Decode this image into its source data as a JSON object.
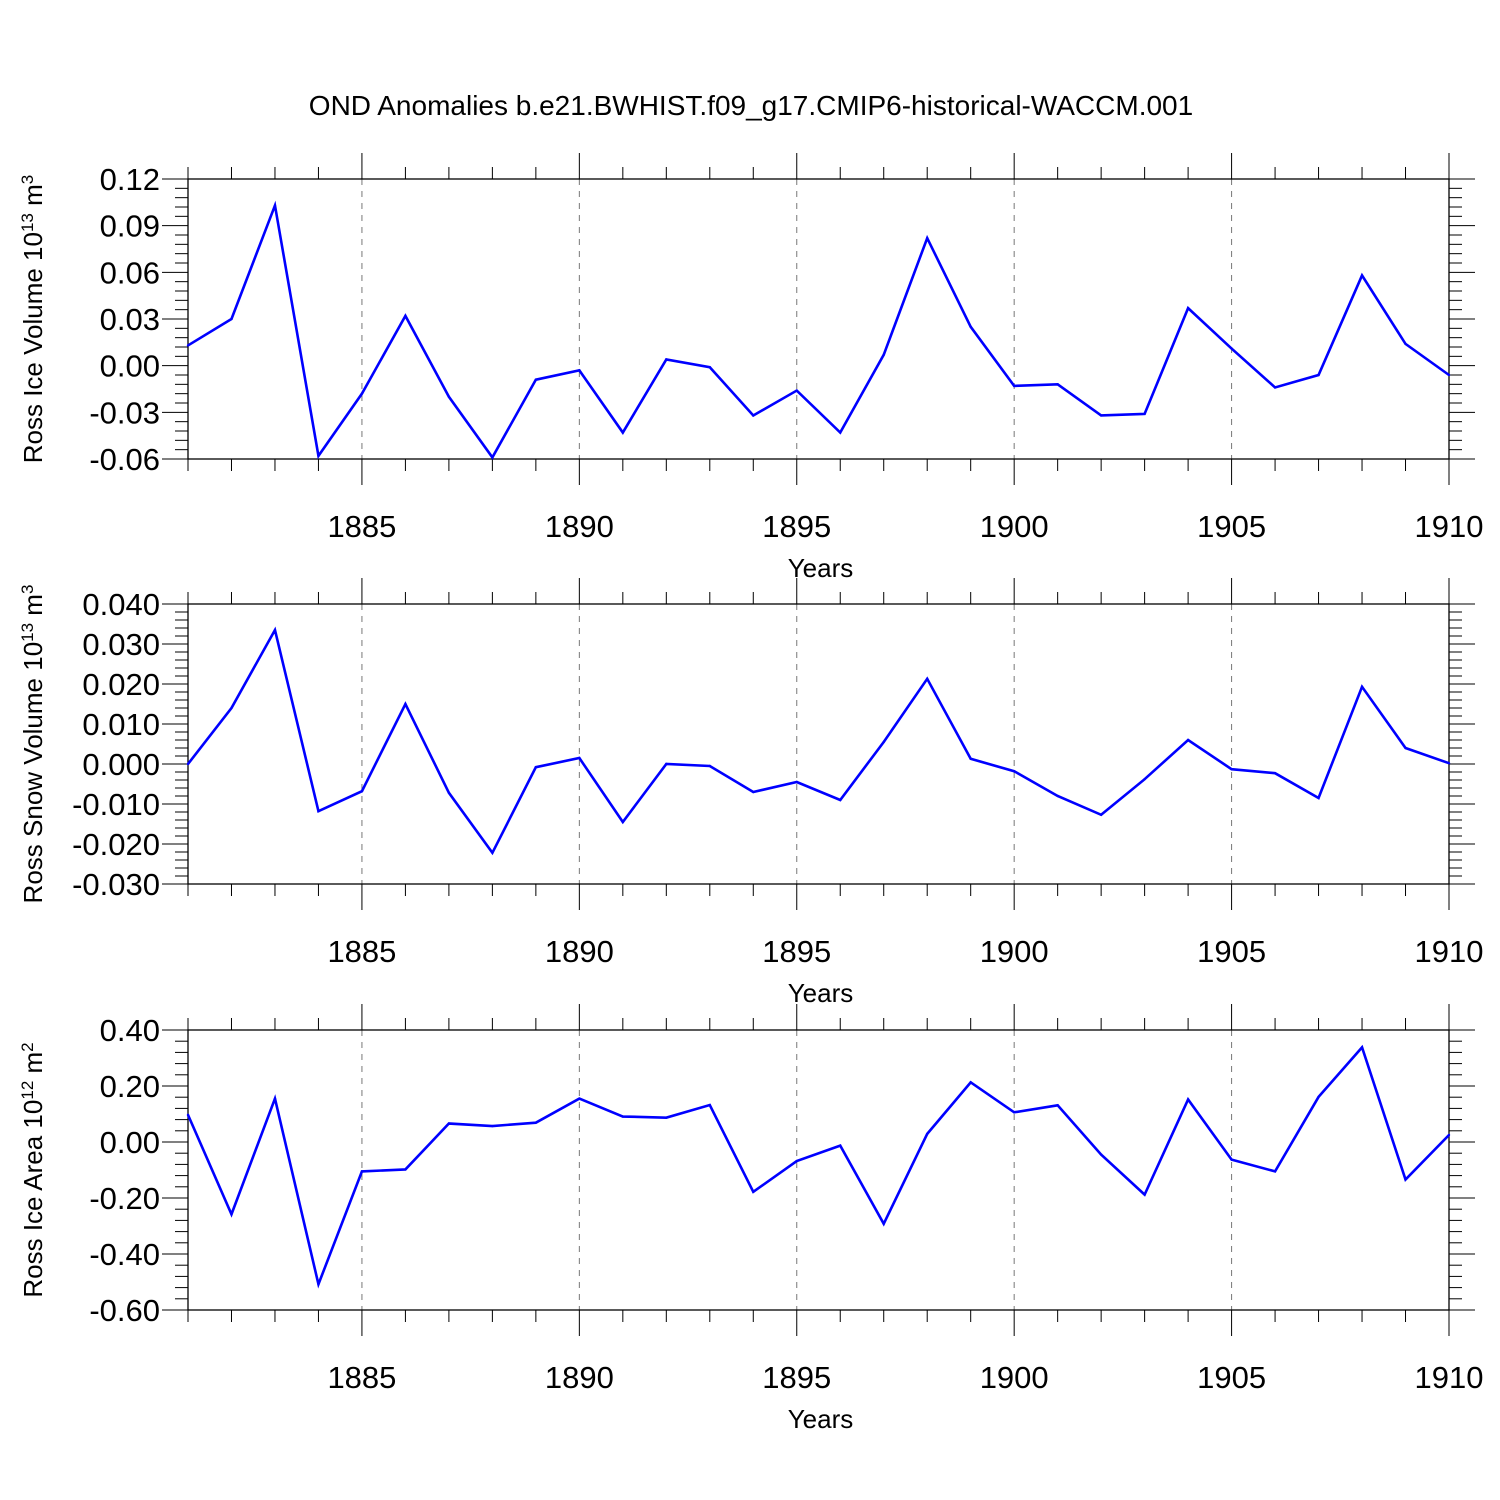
{
  "title": "OND Anomalies b.e21.BWHIST.f09_g17.CMIP6-historical-WACCM.001",
  "line_color": "#0000ff",
  "chart_data": [
    {
      "type": "line",
      "ylabel": "Ross Ice Volume",
      "ylabel_unit": "10",
      "ylabel_exp": "13",
      "ylabel_unit2": "m",
      "ylabel_exp2": "3",
      "xlabel": "Years",
      "xlim": [
        1881,
        1910
      ],
      "ylim": [
        -0.06,
        0.12
      ],
      "xticks": [
        "1885",
        "1890",
        "1895",
        "1900",
        "1905",
        "1910"
      ],
      "yticks": [
        "-0.06",
        "-0.03",
        "0.00",
        "0.03",
        "0.06",
        "0.09",
        "0.12"
      ],
      "x": [
        1881,
        1882,
        1883,
        1884,
        1885,
        1886,
        1887,
        1888,
        1889,
        1890,
        1891,
        1892,
        1893,
        1894,
        1895,
        1896,
        1897,
        1898,
        1899,
        1900,
        1901,
        1902,
        1903,
        1904,
        1905,
        1906,
        1907,
        1908,
        1909,
        1910
      ],
      "values": [
        0.013,
        0.03,
        0.103,
        -0.058,
        -0.018,
        0.032,
        -0.02,
        -0.059,
        -0.009,
        -0.003,
        -0.043,
        0.004,
        -0.001,
        -0.032,
        -0.016,
        -0.043,
        0.007,
        0.082,
        0.025,
        -0.013,
        -0.012,
        -0.032,
        -0.031,
        0.037,
        0.011,
        -0.014,
        -0.006,
        0.058,
        0.014,
        -0.006
      ]
    },
    {
      "type": "line",
      "ylabel": "Ross Snow Volume",
      "ylabel_unit": "10",
      "ylabel_exp": "13",
      "ylabel_unit2": "m",
      "ylabel_exp2": "3",
      "xlabel": "Years",
      "xlim": [
        1881,
        1910
      ],
      "ylim": [
        -0.03,
        0.04
      ],
      "xticks": [
        "1885",
        "1890",
        "1895",
        "1900",
        "1905",
        "1910"
      ],
      "yticks": [
        "-0.030",
        "-0.020",
        "-0.010",
        "0.000",
        "0.010",
        "0.020",
        "0.030",
        "0.040"
      ],
      "x": [
        1881,
        1882,
        1883,
        1884,
        1885,
        1886,
        1887,
        1888,
        1889,
        1890,
        1891,
        1892,
        1893,
        1894,
        1895,
        1896,
        1897,
        1898,
        1899,
        1900,
        1901,
        1902,
        1903,
        1904,
        1905,
        1906,
        1907,
        1908,
        1909,
        1910
      ],
      "values": [
        0.0,
        0.014,
        0.0335,
        -0.0118,
        -0.0068,
        0.015,
        -0.0072,
        -0.0222,
        -0.0008,
        0.0015,
        -0.0145,
        0.0,
        -0.0005,
        -0.007,
        -0.0045,
        -0.009,
        0.0055,
        0.0213,
        0.0013,
        -0.0018,
        -0.008,
        -0.0127,
        -0.0038,
        0.006,
        -0.0013,
        -0.0023,
        -0.0085,
        0.0193,
        0.004,
        0.0002
      ]
    },
    {
      "type": "line",
      "ylabel": "Ross Ice Area",
      "ylabel_unit": "10",
      "ylabel_exp": "12",
      "ylabel_unit2": "m",
      "ylabel_exp2": "2",
      "xlabel": "Years",
      "xlim": [
        1881,
        1910
      ],
      "ylim": [
        -0.6,
        0.4
      ],
      "xticks": [
        "1885",
        "1890",
        "1895",
        "1900",
        "1905",
        "1910"
      ],
      "yticks": [
        "-0.60",
        "-0.40",
        "-0.20",
        "0.00",
        "0.20",
        "0.40"
      ],
      "x": [
        1881,
        1882,
        1883,
        1884,
        1885,
        1886,
        1887,
        1888,
        1889,
        1890,
        1891,
        1892,
        1893,
        1894,
        1895,
        1896,
        1897,
        1898,
        1899,
        1900,
        1901,
        1902,
        1903,
        1904,
        1905,
        1906,
        1907,
        1908,
        1909,
        1910
      ],
      "values": [
        0.097,
        -0.258,
        0.155,
        -0.508,
        -0.105,
        -0.098,
        0.066,
        0.057,
        0.069,
        0.155,
        0.091,
        0.087,
        0.132,
        -0.178,
        -0.068,
        -0.013,
        -0.292,
        0.029,
        0.213,
        0.106,
        0.131,
        -0.045,
        -0.188,
        0.152,
        -0.063,
        -0.105,
        0.161,
        0.338,
        -0.134,
        0.025
      ]
    }
  ]
}
